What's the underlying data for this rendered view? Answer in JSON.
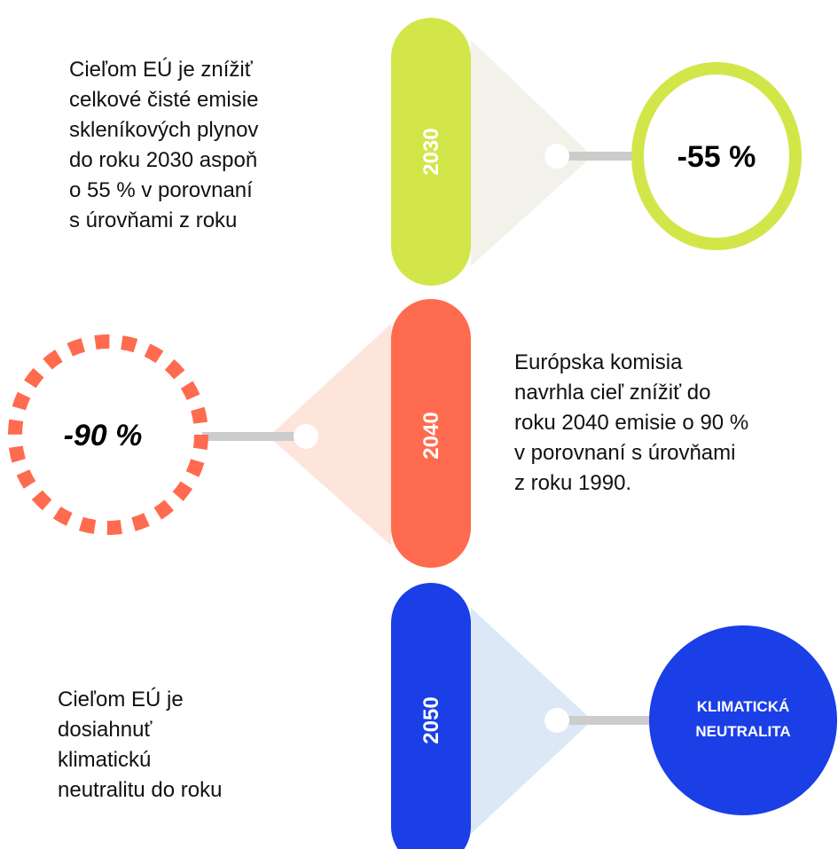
{
  "items": [
    {
      "year": "2030",
      "badge": [
        "-55 %"
      ],
      "text": [
        "Cieľom EÚ je znížiť",
        "celkové čisté emisie",
        "skleníkových plynov",
        "do roku 2030 aspoň",
        "o 55 % v porovnaní",
        "s úrovňami z roku"
      ]
    },
    {
      "year": "2040",
      "badge": [
        "-90 %"
      ],
      "text": [
        "Európska komisia",
        "navrhla cieľ znížiť do",
        "roku 2040 emisie o 90 %",
        "v porovnaní s úrovňami",
        "z roku 1990."
      ]
    },
    {
      "year": "2050",
      "badge": [
        "KLIMATICKÁ",
        "NEUTRALITA"
      ],
      "text": [
        "Cieľom EÚ je",
        "dosiahnuť",
        "klimatickú",
        "neutralitu do roku"
      ]
    }
  ]
}
